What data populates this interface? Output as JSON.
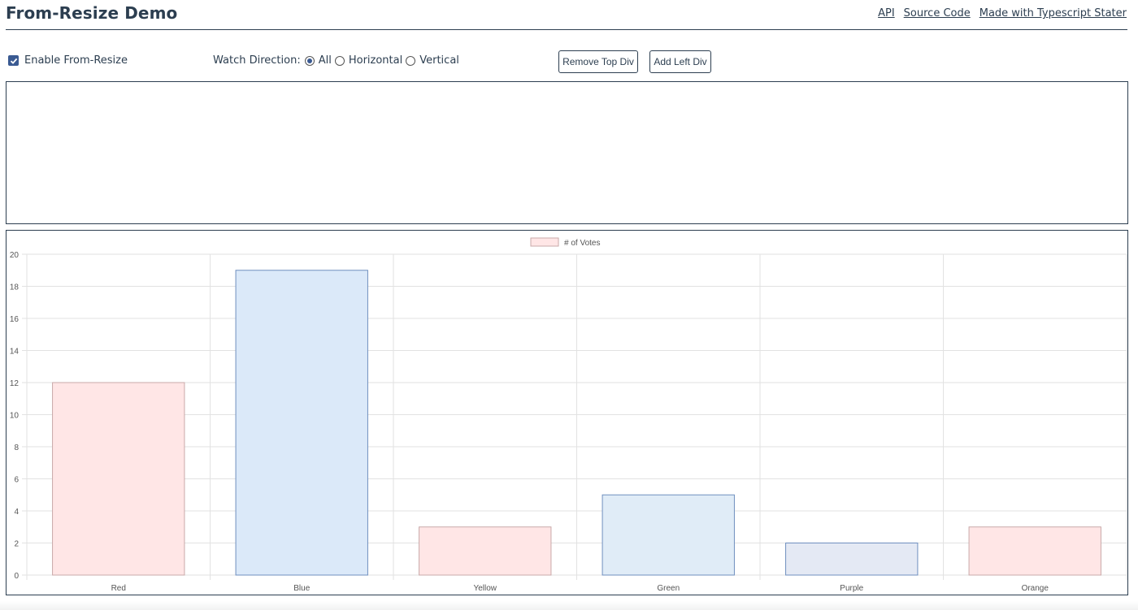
{
  "header": {
    "title": "From-Resize Demo",
    "links": [
      "API",
      "Source Code",
      "Made with Typescript Stater"
    ]
  },
  "controls": {
    "enable_label": "Enable From-Resize",
    "enable_checked": true,
    "watch_label": "Watch Direction:",
    "directions": [
      "All",
      "Horizontal",
      "Vertical"
    ],
    "selected_direction": "All",
    "remove_button": "Remove Top Div",
    "add_button": "Add Left Div"
  },
  "colors": {
    "text": "#2c3e50",
    "checkbox": "#3a5a92",
    "bar_red": "#ffe6e6",
    "bar_blue": "#dbe9f9",
    "bar_green": "#e0ecf7",
    "bar_purple": "#e4e9f4",
    "bar_border_red": "#c9a9a9",
    "bar_border_blue": "#6f8fbf"
  },
  "chart_data": {
    "type": "bar",
    "legend": [
      "# of Votes"
    ],
    "legend_position": "top",
    "grid": true,
    "categories": [
      "Red",
      "Blue",
      "Yellow",
      "Green",
      "Purple",
      "Orange"
    ],
    "series": [
      {
        "name": "# of Votes",
        "values": [
          12,
          19,
          3,
          5,
          2,
          3
        ]
      }
    ],
    "ylim": [
      0,
      20
    ],
    "yticks": [
      "0",
      "2",
      "4",
      "6",
      "8",
      "10",
      "12",
      "14",
      "16",
      "18",
      "20"
    ]
  }
}
